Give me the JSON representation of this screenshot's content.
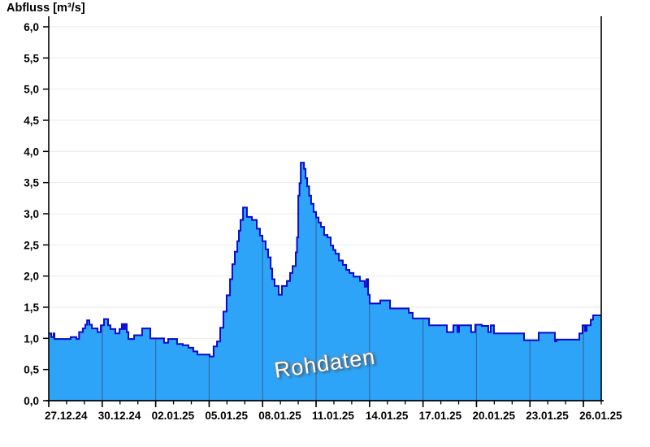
{
  "page": {
    "title": "Abfluss [m³/s]",
    "watermark": "Rohdaten"
  },
  "colors": {
    "area_fill": "#2EA4F8",
    "area_outline": "#0A0ACC",
    "grid_horizontal": "#E9E9E9",
    "grid_vertical_inside_fill": "#2F6BA6",
    "axis": "#000000",
    "background": "#FFFFFF",
    "watermark_text": "#FFFFFF"
  },
  "chart_data": {
    "type": "area",
    "title": "Abfluss [m³/s]",
    "ylabel": "Abfluss [m³/s]",
    "legend_position": "none",
    "grid": {
      "horizontal": true,
      "vertical_major_visible_inside_fill_only": true
    },
    "x_axis": {
      "domain_days": [
        0,
        31
      ],
      "start_date": "27.12.24",
      "minor_tick_every_days": 1,
      "major_ticks": [
        {
          "day": 0,
          "label": "27.12.24"
        },
        {
          "day": 3,
          "label": "30.12.24"
        },
        {
          "day": 6,
          "label": "02.01.25"
        },
        {
          "day": 9,
          "label": "05.01.25"
        },
        {
          "day": 12,
          "label": "08.01.25"
        },
        {
          "day": 15,
          "label": "11.01.25"
        },
        {
          "day": 18,
          "label": "14.01.25"
        },
        {
          "day": 21,
          "label": "17.01.25"
        },
        {
          "day": 24,
          "label": "20.01.25"
        },
        {
          "day": 27,
          "label": "23.01.25"
        },
        {
          "day": 30,
          "label": "26.01.25"
        }
      ]
    },
    "y_axis": {
      "min": 0,
      "max": 6,
      "step": 0.5,
      "labels": [
        "0,0",
        "0,5",
        "1,0",
        "1,5",
        "2,0",
        "2,5",
        "3,0",
        "3,5",
        "4,0",
        "4,5",
        "5,0",
        "5,5",
        "6,0"
      ]
    },
    "annotations": [
      {
        "text": "Rohdaten",
        "style": "watermark",
        "approx_day": 15.5,
        "approx_value": 0.4
      }
    ],
    "series": [
      {
        "name": "Rohdaten",
        "unit": "m³/s",
        "render": "step-after",
        "step_points": [
          [
            0.0,
            1.08
          ],
          [
            0.14,
            1.02
          ],
          [
            0.27,
            1.08
          ],
          [
            0.32,
            0.99
          ],
          [
            1.23,
            1.02
          ],
          [
            1.55,
            0.99
          ],
          [
            1.7,
            1.1
          ],
          [
            1.91,
            1.16
          ],
          [
            2.05,
            1.22
          ],
          [
            2.15,
            1.29
          ],
          [
            2.28,
            1.22
          ],
          [
            2.42,
            1.16
          ],
          [
            2.74,
            1.1
          ],
          [
            2.92,
            1.21
          ],
          [
            3.1,
            1.31
          ],
          [
            3.33,
            1.21
          ],
          [
            3.46,
            1.15
          ],
          [
            3.74,
            1.08
          ],
          [
            3.97,
            1.15
          ],
          [
            4.1,
            1.23
          ],
          [
            4.2,
            1.15
          ],
          [
            4.28,
            1.23
          ],
          [
            4.38,
            1.1
          ],
          [
            4.47,
            0.99
          ],
          [
            4.79,
            1.05
          ],
          [
            5.24,
            1.16
          ],
          [
            5.7,
            1.0
          ],
          [
            6.47,
            0.93
          ],
          [
            6.7,
            0.99
          ],
          [
            7.2,
            0.91
          ],
          [
            7.52,
            0.89
          ],
          [
            7.84,
            0.85
          ],
          [
            8.11,
            0.79
          ],
          [
            8.34,
            0.74
          ],
          [
            9.03,
            0.71
          ],
          [
            9.25,
            0.87
          ],
          [
            9.44,
            0.95
          ],
          [
            9.62,
            1.17
          ],
          [
            9.8,
            1.43
          ],
          [
            9.98,
            1.69
          ],
          [
            10.17,
            1.95
          ],
          [
            10.3,
            2.19
          ],
          [
            10.44,
            2.39
          ],
          [
            10.58,
            2.56
          ],
          [
            10.67,
            2.73
          ],
          [
            10.76,
            2.9
          ],
          [
            10.9,
            3.1
          ],
          [
            11.12,
            2.95
          ],
          [
            11.4,
            2.9
          ],
          [
            11.67,
            2.76
          ],
          [
            11.85,
            2.65
          ],
          [
            11.99,
            2.56
          ],
          [
            12.17,
            2.43
          ],
          [
            12.31,
            2.3
          ],
          [
            12.45,
            2.12
          ],
          [
            12.54,
            1.95
          ],
          [
            12.67,
            1.84
          ],
          [
            12.9,
            1.7
          ],
          [
            13.08,
            1.84
          ],
          [
            13.36,
            1.92
          ],
          [
            13.54,
            2.05
          ],
          [
            13.68,
            2.16
          ],
          [
            13.86,
            2.38
          ],
          [
            13.93,
            2.62
          ],
          [
            14.0,
            3.29
          ],
          [
            14.07,
            3.49
          ],
          [
            14.14,
            3.82
          ],
          [
            14.32,
            3.72
          ],
          [
            14.41,
            3.57
          ],
          [
            14.5,
            3.44
          ],
          [
            14.61,
            3.29
          ],
          [
            14.72,
            3.16
          ],
          [
            14.86,
            3.03
          ],
          [
            15.0,
            2.94
          ],
          [
            15.14,
            2.86
          ],
          [
            15.27,
            2.79
          ],
          [
            15.45,
            2.66
          ],
          [
            15.64,
            2.62
          ],
          [
            15.82,
            2.49
          ],
          [
            15.96,
            2.42
          ],
          [
            16.09,
            2.36
          ],
          [
            16.28,
            2.25
          ],
          [
            16.5,
            2.18
          ],
          [
            16.69,
            2.1
          ],
          [
            16.87,
            2.05
          ],
          [
            17.1,
            1.99
          ],
          [
            17.46,
            1.92
          ],
          [
            17.73,
            1.83
          ],
          [
            17.83,
            1.95
          ],
          [
            17.92,
            1.7
          ],
          [
            18.01,
            1.56
          ],
          [
            18.6,
            1.61
          ],
          [
            19.15,
            1.48
          ],
          [
            20.2,
            1.41
          ],
          [
            20.42,
            1.32
          ],
          [
            21.34,
            1.21
          ],
          [
            22.34,
            1.1
          ],
          [
            22.7,
            1.21
          ],
          [
            22.93,
            1.1
          ],
          [
            23.02,
            1.21
          ],
          [
            23.7,
            1.1
          ],
          [
            23.93,
            1.22
          ],
          [
            24.3,
            1.2
          ],
          [
            24.66,
            1.1
          ],
          [
            24.8,
            1.21
          ],
          [
            24.98,
            1.08
          ],
          [
            26.67,
            0.97
          ],
          [
            27.49,
            1.09
          ],
          [
            28.4,
            0.95
          ],
          [
            28.49,
            0.98
          ],
          [
            29.77,
            1.08
          ],
          [
            29.95,
            1.21
          ],
          [
            30.09,
            1.12
          ],
          [
            30.18,
            1.21
          ],
          [
            30.41,
            1.3
          ],
          [
            30.54,
            1.37
          ]
        ]
      }
    ]
  }
}
